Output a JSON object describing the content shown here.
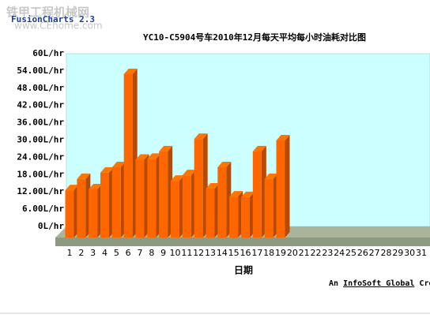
{
  "watermark": {
    "site_name": "铁甲工程机械网",
    "url": "www.CEhome.com"
  },
  "brand": "FusionCharts 2.3",
  "footer": {
    "prefix": "An",
    "link": "InfoSoft Global",
    "suffix": "Cre"
  },
  "chart_data": {
    "type": "bar3d",
    "title": "YC10-C5904号车2010年12月每天平均每小时油耗对比图",
    "x_label": "日期",
    "categories": [
      "1",
      "2",
      "3",
      "4",
      "5",
      "6",
      "7",
      "8",
      "9",
      "10",
      "11",
      "12",
      "13",
      "14",
      "15",
      "16",
      "17",
      "18",
      "19",
      "20",
      "21",
      "22",
      "23",
      "24",
      "25",
      "26",
      "27",
      "28",
      "29",
      "30",
      "31"
    ],
    "values": [
      16.4,
      20.3,
      16.7,
      22.5,
      24.4,
      56.7,
      27,
      27.3,
      29.9,
      19.7,
      21.6,
      34.2,
      17,
      24.4,
      14.2,
      14,
      29.9,
      20.3,
      33.7,
      null,
      null,
      null,
      null,
      null,
      null,
      null,
      null,
      null,
      null,
      null,
      null
    ],
    "color": "#ff6600",
    "ylim": [
      0,
      60
    ],
    "yticks": [
      {
        "value": 60,
        "label": "60L/hr"
      },
      {
        "value": 54,
        "label": "54.00L/hr"
      },
      {
        "value": 48,
        "label": "48.00L/hr"
      },
      {
        "value": 42,
        "label": "42.00L/hr"
      },
      {
        "value": 36,
        "label": "36.00L/hr"
      },
      {
        "value": 30,
        "label": "30.00L/hr"
      },
      {
        "value": 24,
        "label": "24.00L/hr"
      },
      {
        "value": 18,
        "label": "18.00L/hr"
      },
      {
        "value": 12,
        "label": "12.00L/hr"
      },
      {
        "value": 6,
        "label": "6.00L/hr"
      },
      {
        "value": 0,
        "label": "0L/hr"
      }
    ],
    "grid": false
  }
}
